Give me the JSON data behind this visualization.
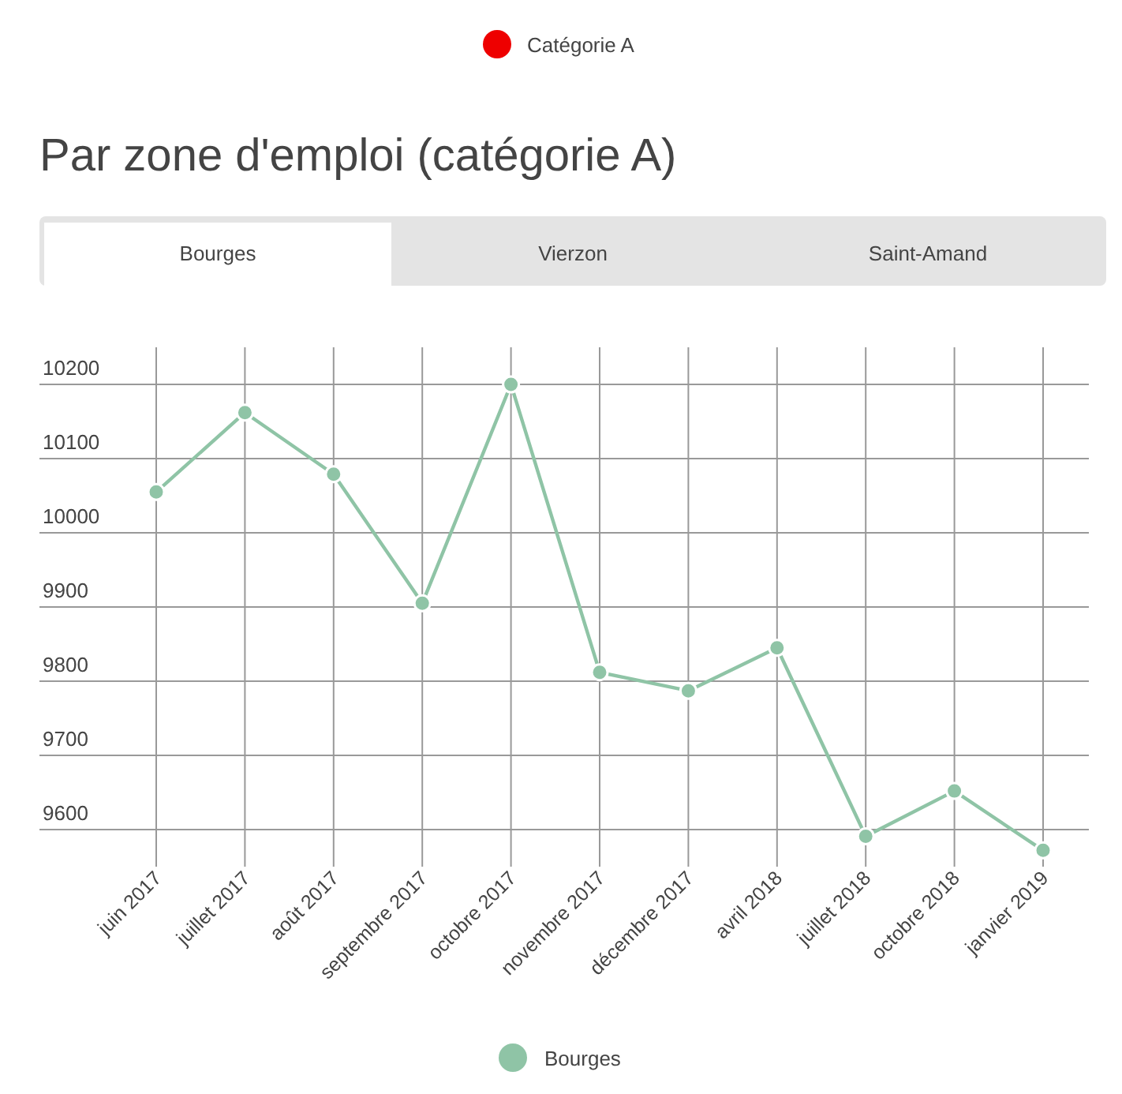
{
  "chart_data": {
    "type": "line",
    "title": "Par zone d'emploi (catégorie A)",
    "annotations": [
      "Catégorie A",
      "Bourges",
      "Vierzon",
      "Saint-Amand"
    ],
    "categories": [
      "juin 2017",
      "juillet 2017",
      "août 2017",
      "septembre 2017",
      "octobre 2017",
      "novembre 2017",
      "décembre 2017",
      "avril 2018",
      "juillet 2018",
      "octobre 2018",
      "janvier 2019"
    ],
    "series": [
      {
        "name": "Bourges",
        "color": "#8fc4a6",
        "values": [
          10055,
          10162,
          10079,
          9905,
          10200,
          9812,
          9787,
          9845,
          9591,
          9652,
          9572
        ]
      }
    ],
    "ylim": [
      9550,
      10250
    ],
    "yticks": [
      9600,
      9700,
      9800,
      9900,
      10000,
      10100,
      10200
    ],
    "grid": true,
    "legend": "bottom",
    "marker": "circle",
    "line_style": "solid"
  }
}
